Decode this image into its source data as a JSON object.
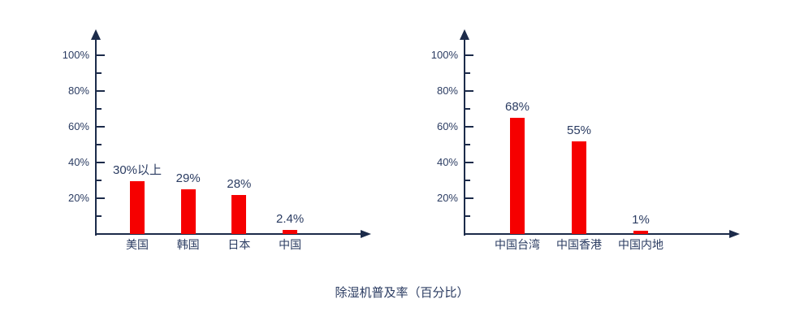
{
  "page": {
    "caption": "除湿机普及率（百分比）"
  },
  "colors": {
    "bar_red": "#f60000",
    "axis_navy": "#1c2b4a",
    "text_navy": "#2b3c62",
    "background": "#ffffff"
  },
  "chart_data": [
    {
      "type": "bar",
      "title": "",
      "xlabel": "",
      "ylabel": "",
      "categories": [
        "美国",
        "韩国",
        "日本",
        "中国"
      ],
      "values": [
        30,
        29,
        28,
        2.4
      ],
      "value_labels": [
        "30%以上",
        "29%",
        "28%",
        "2.4%"
      ],
      "drawn_pct": [
        29.5,
        25,
        21.8,
        2.3
      ],
      "ylim": [
        0,
        100
      ],
      "yticks": [
        "20%",
        "40%",
        "60%",
        "80%",
        "100%"
      ],
      "grid": false,
      "legend": false
    },
    {
      "type": "bar",
      "title": "",
      "xlabel": "",
      "ylabel": "",
      "categories": [
        "中国台湾",
        "中国香港",
        "中国内地"
      ],
      "values": [
        68,
        55,
        1
      ],
      "value_labels": [
        "68%",
        "55%",
        "1%"
      ],
      "drawn_pct": [
        65,
        51.8,
        1.6
      ],
      "ylim": [
        0,
        100
      ],
      "yticks": [
        "20%",
        "40%",
        "60%",
        "80%",
        "100%"
      ],
      "grid": false,
      "legend": false
    }
  ]
}
